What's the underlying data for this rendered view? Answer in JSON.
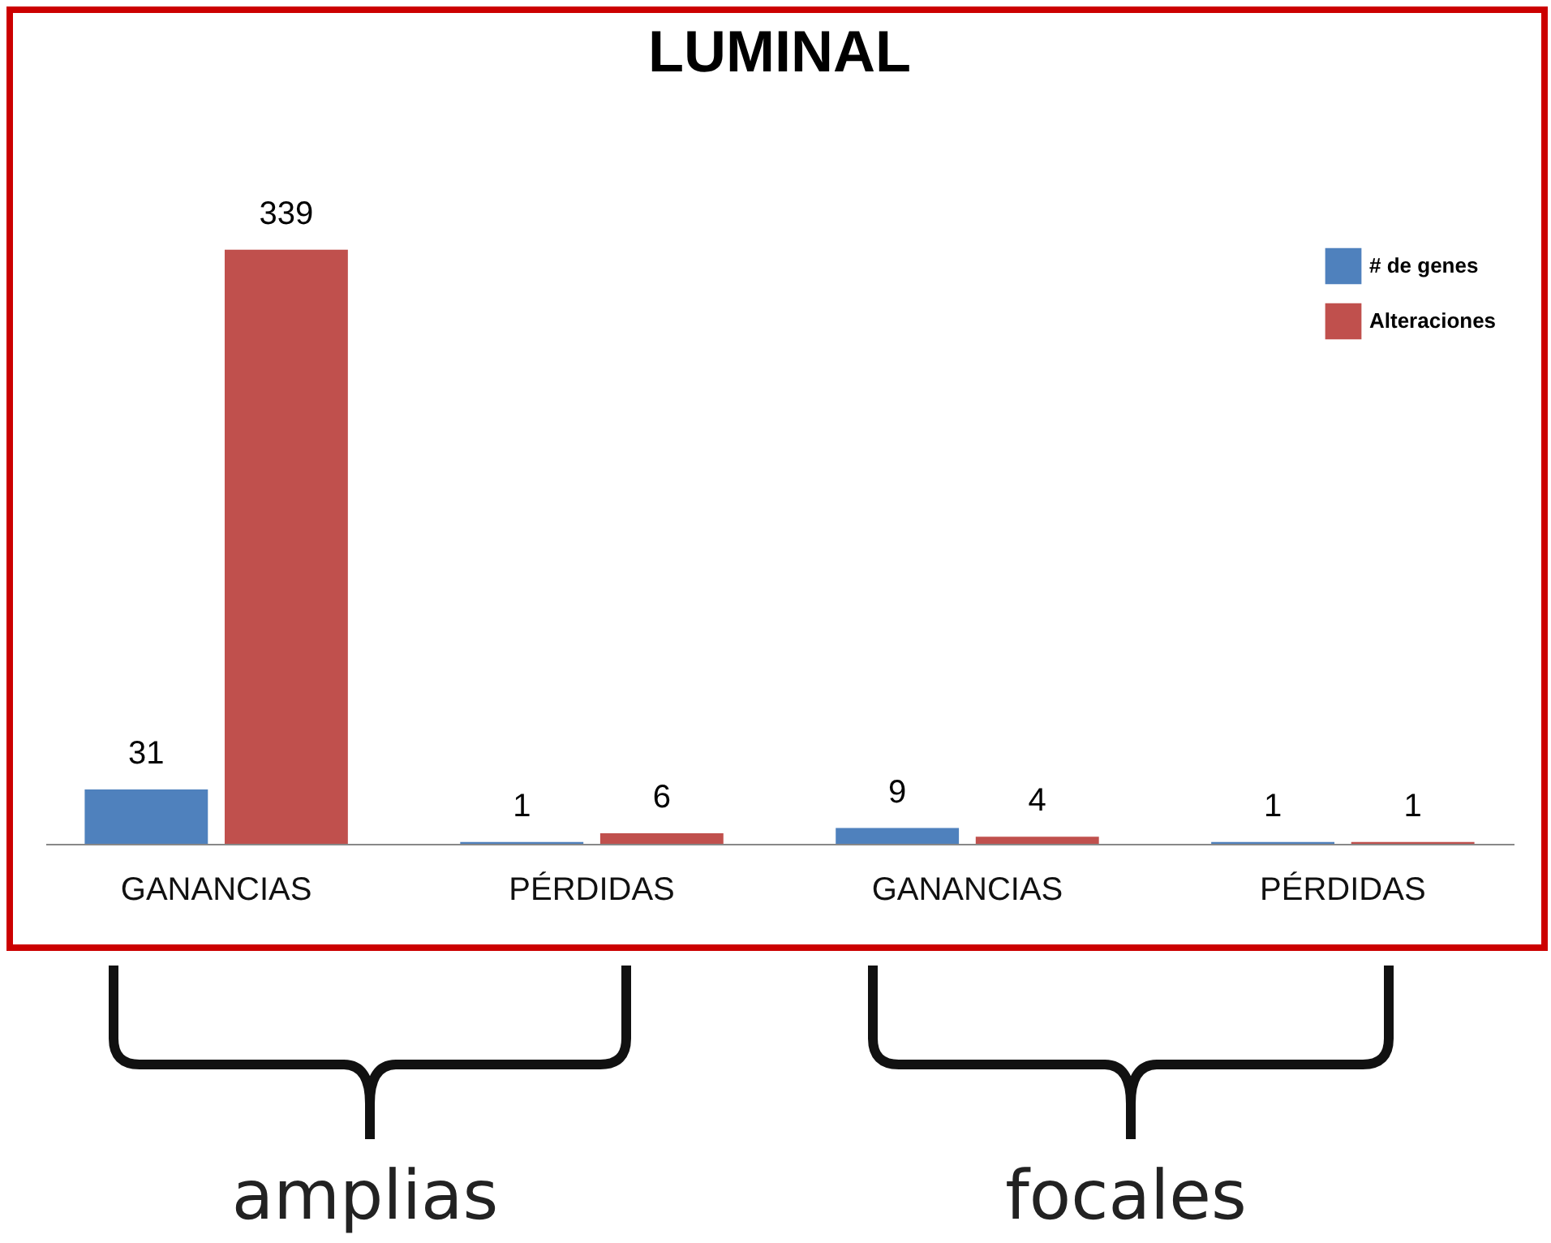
{
  "chart_data": {
    "type": "bar",
    "title": "LUMINAL",
    "categories": [
      "GANANCIAS",
      "PÉRDIDAS",
      "GANANCIAS",
      "PÉRDIDAS"
    ],
    "series": [
      {
        "name": "# de genes",
        "color": "#4f81bd",
        "values": [
          31,
          1,
          9,
          1
        ]
      },
      {
        "name": "Alteraciones",
        "color": "#c0504d",
        "values": [
          339,
          6,
          4,
          1
        ]
      }
    ],
    "data_labels": true,
    "legend": "top right",
    "tick_labels": "x",
    "annotations": [
      "amplias",
      "focales"
    ]
  }
}
